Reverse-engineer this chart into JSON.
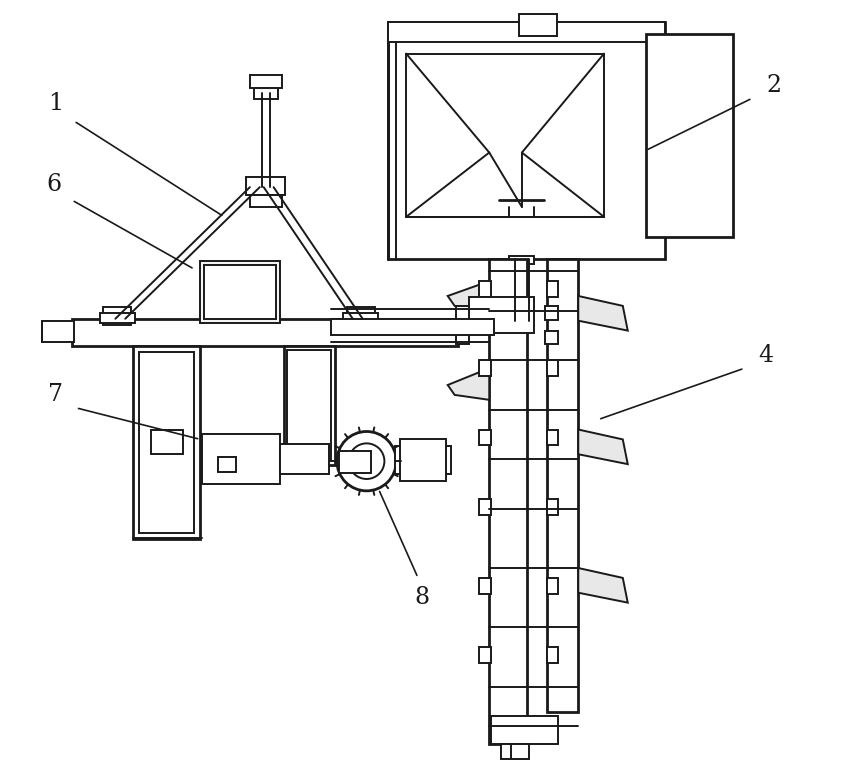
{
  "bg_color": "#ffffff",
  "line_color": "#1a1a1a",
  "lw": 1.4,
  "lw_thick": 2.0,
  "fig_width": 8.42,
  "fig_height": 7.71
}
